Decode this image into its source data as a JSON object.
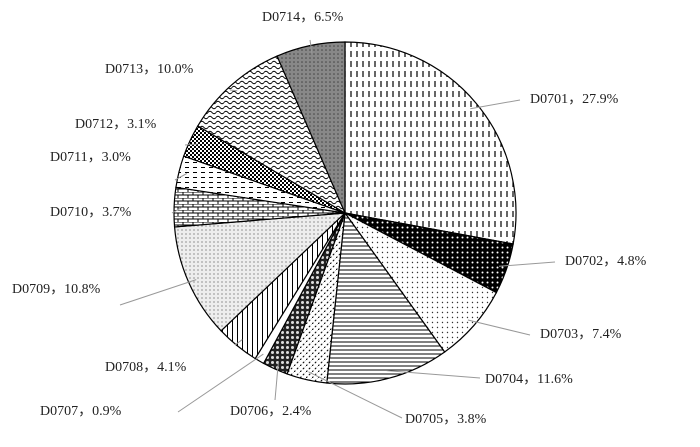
{
  "chart_data": {
    "type": "pie",
    "values": [
      27.9,
      4.8,
      7.4,
      11.6,
      3.8,
      2.4,
      0.9,
      4.1,
      10.8,
      3.7,
      3.0,
      3.1,
      10.0,
      6.5
    ],
    "value_labels": [
      "D0701，27.9%",
      "D0702，4.8%",
      "D0703，7.4%",
      "D0704，11.6%",
      "D0705，3.8%",
      "D0706，2.4%",
      "D0707，0.9%",
      "D0708，4.1%",
      "D0709，10.8%",
      "D0710，3.7%",
      "D0711，3.0%",
      "D0712，3.1%",
      "D0713，10.0%",
      "D0714，6.5%"
    ]
  }
}
